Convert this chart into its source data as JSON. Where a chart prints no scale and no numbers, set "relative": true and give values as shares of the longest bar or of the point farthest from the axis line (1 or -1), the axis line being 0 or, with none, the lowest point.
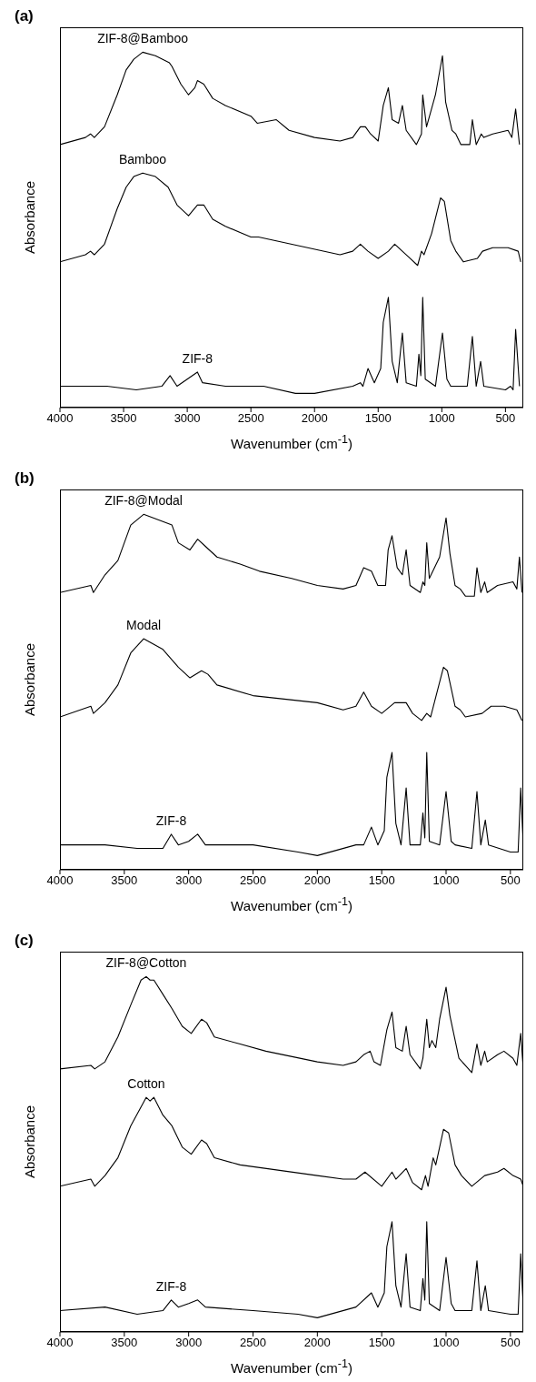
{
  "chart_data": [
    {
      "type": "line",
      "title": "(a)",
      "xlabel": "Wavenumber (cm$^{-1}$)",
      "ylabel": "Absorbance",
      "relative": true,
      "tick_labels": "x",
      "xlim": [
        4000,
        360
      ],
      "xticks": [
        4000,
        3500,
        3000,
        2500,
        2000,
        1500,
        1000,
        500
      ],
      "series": [
        {
          "name": "ZIF-8@Bamboo",
          "color": "#000000",
          "x": [
            4000,
            3800,
            3760,
            3730,
            3650,
            3550,
            3480,
            3420,
            3350,
            3250,
            3140,
            3120,
            3050,
            2990,
            2940,
            2920,
            2870,
            2800,
            2700,
            2500,
            2450,
            2300,
            2200,
            2000,
            1800,
            1700,
            1640,
            1600,
            1560,
            1500,
            1460,
            1420,
            1390,
            1340,
            1310,
            1280,
            1200,
            1160,
            1150,
            1120,
            1050,
            995,
            970,
            920,
            890,
            850,
            780,
            760,
            730,
            690,
            670,
            600,
            480,
            450,
            420,
            390
          ],
          "values": [
            0.74,
            0.76,
            0.77,
            0.76,
            0.79,
            0.88,
            0.95,
            0.98,
            1.0,
            0.99,
            0.97,
            0.96,
            0.91,
            0.88,
            0.9,
            0.92,
            0.91,
            0.87,
            0.85,
            0.82,
            0.8,
            0.81,
            0.78,
            0.76,
            0.75,
            0.76,
            0.79,
            0.79,
            0.77,
            0.75,
            0.85,
            0.9,
            0.81,
            0.8,
            0.85,
            0.78,
            0.74,
            0.77,
            0.88,
            0.79,
            0.88,
            0.99,
            0.86,
            0.78,
            0.77,
            0.74,
            0.74,
            0.81,
            0.74,
            0.77,
            0.76,
            0.77,
            0.78,
            0.76,
            0.84,
            0.74
          ]
        },
        {
          "name": "Bamboo",
          "color": "#000000",
          "x": [
            4000,
            3800,
            3760,
            3730,
            3650,
            3550,
            3480,
            3420,
            3350,
            3250,
            3150,
            3080,
            2990,
            2920,
            2870,
            2800,
            2700,
            2500,
            2440,
            1800,
            1700,
            1640,
            1580,
            1500,
            1420,
            1370,
            1310,
            1250,
            1190,
            1160,
            1140,
            1080,
            1010,
            980,
            930,
            890,
            830,
            720,
            680,
            600,
            480,
            400,
            380
          ],
          "values": [
            0.41,
            0.43,
            0.44,
            0.43,
            0.46,
            0.56,
            0.62,
            0.65,
            0.66,
            0.65,
            0.62,
            0.57,
            0.54,
            0.57,
            0.57,
            0.53,
            0.51,
            0.48,
            0.48,
            0.43,
            0.44,
            0.46,
            0.44,
            0.42,
            0.44,
            0.46,
            0.44,
            0.42,
            0.4,
            0.44,
            0.43,
            0.49,
            0.59,
            0.58,
            0.47,
            0.44,
            0.41,
            0.42,
            0.44,
            0.45,
            0.45,
            0.44,
            0.41
          ]
        },
        {
          "name": "ZIF-8",
          "color": "#000000",
          "x": [
            4000,
            3750,
            3630,
            3400,
            3200,
            3135,
            3080,
            3000,
            2920,
            2880,
            2700,
            2400,
            2150,
            2000,
            1700,
            1640,
            1620,
            1580,
            1530,
            1480,
            1460,
            1420,
            1390,
            1350,
            1310,
            1280,
            1200,
            1180,
            1165,
            1150,
            1130,
            1050,
            995,
            960,
            930,
            800,
            760,
            730,
            695,
            670,
            500,
            460,
            440,
            420,
            390
          ],
          "values": [
            0.06,
            0.06,
            0.06,
            0.05,
            0.06,
            0.09,
            0.06,
            0.08,
            0.1,
            0.07,
            0.06,
            0.06,
            0.04,
            0.04,
            0.06,
            0.07,
            0.06,
            0.11,
            0.07,
            0.11,
            0.24,
            0.31,
            0.13,
            0.07,
            0.21,
            0.07,
            0.06,
            0.15,
            0.09,
            0.31,
            0.08,
            0.06,
            0.21,
            0.08,
            0.06,
            0.06,
            0.2,
            0.06,
            0.13,
            0.06,
            0.05,
            0.06,
            0.05,
            0.22,
            0.06
          ]
        }
      ]
    },
    {
      "type": "line",
      "title": "(b)",
      "xlabel": "Wavenumber (cm$^{-1}$)",
      "ylabel": "Absorbance",
      "relative": true,
      "tick_labels": "x",
      "xlim": [
        4000,
        400
      ],
      "xticks": [
        4000,
        3500,
        3000,
        2500,
        2000,
        1500,
        1000,
        500
      ],
      "series": [
        {
          "name": "ZIF-8@Modal",
          "color": "#000000",
          "x": [
            4000,
            3760,
            3740,
            3650,
            3550,
            3450,
            3350,
            3200,
            3130,
            3080,
            2990,
            2930,
            2870,
            2780,
            2600,
            2450,
            2200,
            2000,
            1800,
            1700,
            1640,
            1580,
            1530,
            1470,
            1450,
            1420,
            1380,
            1340,
            1310,
            1280,
            1200,
            1180,
            1165,
            1150,
            1130,
            1050,
            1000,
            970,
            930,
            890,
            850,
            780,
            760,
            730,
            700,
            680,
            600,
            480,
            450,
            430,
            410
          ],
          "values": [
            0.78,
            0.8,
            0.78,
            0.83,
            0.87,
            0.97,
            1.0,
            0.98,
            0.97,
            0.92,
            0.9,
            0.93,
            0.91,
            0.88,
            0.86,
            0.84,
            0.82,
            0.8,
            0.79,
            0.8,
            0.85,
            0.84,
            0.8,
            0.8,
            0.9,
            0.94,
            0.85,
            0.83,
            0.9,
            0.8,
            0.78,
            0.81,
            0.8,
            0.92,
            0.82,
            0.88,
            0.99,
            0.89,
            0.8,
            0.79,
            0.77,
            0.77,
            0.85,
            0.78,
            0.81,
            0.78,
            0.8,
            0.81,
            0.79,
            0.88,
            0.78
          ]
        },
        {
          "name": "Modal",
          "color": "#000000",
          "x": [
            4000,
            3760,
            3740,
            3650,
            3550,
            3450,
            3350,
            3200,
            3080,
            2990,
            2900,
            2850,
            2780,
            2500,
            2000,
            1800,
            1700,
            1640,
            1580,
            1500,
            1400,
            1340,
            1310,
            1260,
            1190,
            1150,
            1120,
            1020,
            990,
            930,
            890,
            850,
            720,
            650,
            550,
            450,
            410
          ],
          "values": [
            0.43,
            0.46,
            0.44,
            0.47,
            0.52,
            0.61,
            0.65,
            0.62,
            0.57,
            0.54,
            0.56,
            0.55,
            0.52,
            0.49,
            0.47,
            0.45,
            0.46,
            0.5,
            0.46,
            0.44,
            0.47,
            0.47,
            0.47,
            0.44,
            0.42,
            0.44,
            0.43,
            0.57,
            0.56,
            0.46,
            0.45,
            0.43,
            0.44,
            0.46,
            0.46,
            0.45,
            0.42
          ]
        },
        {
          "name": "ZIF-8",
          "color": "#000000",
          "x": [
            4000,
            3650,
            3400,
            3200,
            3135,
            3080,
            3000,
            2930,
            2870,
            2500,
            2150,
            2000,
            1700,
            1640,
            1580,
            1530,
            1480,
            1460,
            1420,
            1390,
            1350,
            1310,
            1280,
            1200,
            1180,
            1165,
            1150,
            1130,
            1050,
            1000,
            960,
            930,
            800,
            760,
            730,
            695,
            670,
            500,
            440,
            420,
            400
          ],
          "values": [
            0.07,
            0.07,
            0.06,
            0.06,
            0.1,
            0.07,
            0.08,
            0.1,
            0.07,
            0.07,
            0.05,
            0.04,
            0.07,
            0.07,
            0.12,
            0.07,
            0.11,
            0.26,
            0.33,
            0.13,
            0.07,
            0.23,
            0.07,
            0.07,
            0.16,
            0.09,
            0.33,
            0.08,
            0.07,
            0.22,
            0.08,
            0.07,
            0.06,
            0.22,
            0.07,
            0.14,
            0.07,
            0.05,
            0.05,
            0.23,
            0.07
          ]
        }
      ]
    },
    {
      "type": "line",
      "title": "(c)",
      "xlabel": "Wavenumber (cm$^{-1}$)",
      "ylabel": "Absorbance",
      "relative": true,
      "tick_labels": "x",
      "xlim": [
        4000,
        400
      ],
      "xticks": [
        4000,
        3500,
        3000,
        2500,
        2000,
        1500,
        1000,
        500
      ],
      "series": [
        {
          "name": "ZIF-8@Cotton",
          "color": "#000000",
          "x": [
            4000,
            3760,
            3730,
            3650,
            3550,
            3450,
            3370,
            3330,
            3300,
            3270,
            3200,
            3130,
            3050,
            2980,
            2900,
            2860,
            2800,
            2600,
            2400,
            2000,
            1800,
            1700,
            1640,
            1590,
            1560,
            1510,
            1460,
            1420,
            1390,
            1340,
            1310,
            1280,
            1200,
            1180,
            1150,
            1130,
            1110,
            1080,
            1050,
            1000,
            970,
            900,
            800,
            760,
            730,
            700,
            680,
            600,
            550,
            480,
            450,
            420,
            400
          ],
          "values": [
            0.74,
            0.75,
            0.74,
            0.76,
            0.83,
            0.92,
            0.99,
            1.0,
            0.99,
            0.99,
            0.95,
            0.91,
            0.86,
            0.84,
            0.88,
            0.87,
            0.83,
            0.81,
            0.79,
            0.76,
            0.75,
            0.76,
            0.78,
            0.79,
            0.76,
            0.75,
            0.85,
            0.9,
            0.8,
            0.79,
            0.86,
            0.78,
            0.74,
            0.77,
            0.88,
            0.8,
            0.82,
            0.8,
            0.88,
            0.97,
            0.89,
            0.77,
            0.73,
            0.81,
            0.75,
            0.79,
            0.76,
            0.78,
            0.79,
            0.77,
            0.75,
            0.84,
            0.74
          ]
        },
        {
          "name": "Cotton",
          "color": "#000000",
          "x": [
            4000,
            3760,
            3730,
            3650,
            3550,
            3450,
            3330,
            3300,
            3270,
            3200,
            3130,
            3050,
            2980,
            2900,
            2860,
            2800,
            2600,
            2000,
            1800,
            1700,
            1630,
            1500,
            1420,
            1390,
            1310,
            1260,
            1190,
            1160,
            1140,
            1100,
            1080,
            1020,
            980,
            930,
            880,
            800,
            700,
            600,
            550,
            480,
            420,
            400
          ],
          "values": [
            0.41,
            0.43,
            0.41,
            0.44,
            0.49,
            0.58,
            0.66,
            0.65,
            0.66,
            0.61,
            0.58,
            0.52,
            0.5,
            0.54,
            0.53,
            0.49,
            0.47,
            0.44,
            0.43,
            0.43,
            0.45,
            0.41,
            0.45,
            0.43,
            0.46,
            0.42,
            0.4,
            0.44,
            0.41,
            0.49,
            0.47,
            0.57,
            0.56,
            0.47,
            0.44,
            0.41,
            0.44,
            0.45,
            0.46,
            0.44,
            0.43,
            0.41
          ]
        },
        {
          "name": "ZIF-8",
          "color": "#000000",
          "x": [
            4000,
            3650,
            3400,
            3200,
            3135,
            3080,
            3000,
            2930,
            2870,
            2500,
            2150,
            2000,
            1700,
            1580,
            1530,
            1480,
            1460,
            1420,
            1390,
            1350,
            1310,
            1280,
            1200,
            1180,
            1165,
            1150,
            1130,
            1050,
            1000,
            960,
            930,
            800,
            760,
            730,
            695,
            670,
            500,
            440,
            420,
            400
          ],
          "values": [
            0.06,
            0.07,
            0.05,
            0.06,
            0.09,
            0.07,
            0.08,
            0.09,
            0.07,
            0.06,
            0.05,
            0.04,
            0.07,
            0.11,
            0.07,
            0.11,
            0.24,
            0.31,
            0.13,
            0.07,
            0.22,
            0.07,
            0.06,
            0.15,
            0.09,
            0.31,
            0.08,
            0.06,
            0.21,
            0.08,
            0.06,
            0.06,
            0.2,
            0.06,
            0.13,
            0.06,
            0.05,
            0.05,
            0.22,
            0.07
          ]
        }
      ]
    }
  ]
}
